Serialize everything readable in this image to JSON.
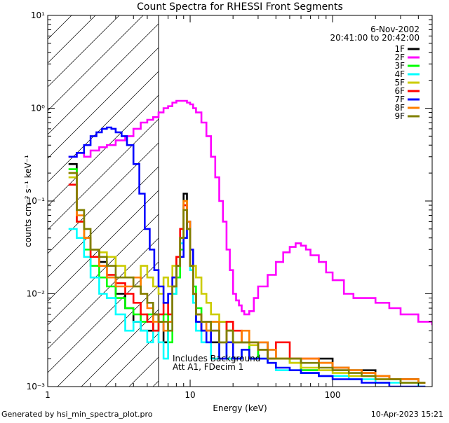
{
  "chart_data": {
    "type": "line",
    "title": "Count Spectra for RHESSI Front Segments",
    "xlabel": "Energy (keV)",
    "ylabel": "counts cm⁻² s⁻¹ keV⁻¹",
    "x_scale": "log",
    "y_scale": "log",
    "xlim": [
      1,
      500
    ],
    "ylim": [
      0.001,
      10
    ],
    "x_ticks": [
      {
        "value": 1,
        "label": "1"
      },
      {
        "value": 10,
        "label": "10"
      },
      {
        "value": 100,
        "label": "100"
      }
    ],
    "y_ticks": [
      {
        "value": 0.001,
        "label": "10⁻³"
      },
      {
        "value": 0.01,
        "label": "10⁻²"
      },
      {
        "value": 0.1,
        "label": "10⁻¹"
      },
      {
        "value": 1,
        "label": "10⁰"
      },
      {
        "value": 10,
        "label": "10¹"
      }
    ],
    "date_label": "6-Nov-2002",
    "time_label": "20:41:00 to 20:42:00",
    "hatched_region_keV": [
      1,
      6
    ],
    "annotations": [
      "Includes Background",
      "Att A1, FDecim 1"
    ],
    "footer_left": "Generated by hsi_min_spectra_plot.pro",
    "footer_right": "10-Apr-2023 15:21",
    "series": [
      {
        "name": "1F",
        "color": "#000000",
        "x": [
          1.4,
          1.6,
          1.8,
          2.0,
          2.3,
          2.6,
          3.0,
          3.5,
          4.0,
          4.5,
          5.0,
          5.5,
          6.0,
          6.5,
          7.0,
          7.5,
          8.0,
          8.5,
          9.0,
          9.5,
          10,
          10.5,
          11,
          12,
          13,
          14,
          16,
          18,
          20,
          23,
          26,
          30,
          35,
          40,
          50,
          60,
          80,
          100,
          130,
          160,
          200,
          250,
          300,
          400
        ],
        "y": [
          0.25,
          0.08,
          0.04,
          0.03,
          0.022,
          0.015,
          0.01,
          0.007,
          0.005,
          0.004,
          0.004,
          0.006,
          0.005,
          0.003,
          0.005,
          0.012,
          0.02,
          0.04,
          0.12,
          0.06,
          0.02,
          0.01,
          0.005,
          0.004,
          0.004,
          0.003,
          0.005,
          0.004,
          0.003,
          0.003,
          0.002,
          0.003,
          0.0025,
          0.002,
          0.002,
          0.0015,
          0.002,
          0.0015,
          0.0015,
          0.0015,
          0.0013,
          0.0012,
          0.0012,
          0.0011
        ]
      },
      {
        "name": "2F",
        "color": "#ff00ff",
        "x": [
          1.4,
          1.6,
          1.8,
          2.0,
          2.3,
          2.6,
          3.0,
          3.5,
          4.0,
          4.5,
          5.0,
          5.5,
          6.0,
          6.5,
          7.0,
          7.5,
          8.0,
          8.5,
          9.0,
          9.5,
          10,
          10.5,
          11,
          12,
          13,
          14,
          15,
          16,
          17,
          18,
          19,
          20,
          21,
          22,
          23,
          24,
          26,
          28,
          30,
          35,
          40,
          45,
          50,
          55,
          60,
          65,
          70,
          80,
          90,
          100,
          120,
          140,
          160,
          200,
          250,
          300,
          400,
          500
        ],
        "y": [
          0.3,
          0.33,
          0.3,
          0.35,
          0.38,
          0.4,
          0.45,
          0.5,
          0.6,
          0.7,
          0.75,
          0.8,
          0.9,
          1.0,
          1.05,
          1.15,
          1.2,
          1.2,
          1.2,
          1.15,
          1.1,
          1.0,
          0.9,
          0.7,
          0.5,
          0.3,
          0.18,
          0.1,
          0.06,
          0.03,
          0.018,
          0.01,
          0.0085,
          0.0075,
          0.0065,
          0.006,
          0.0065,
          0.009,
          0.012,
          0.016,
          0.022,
          0.028,
          0.032,
          0.035,
          0.033,
          0.03,
          0.026,
          0.022,
          0.017,
          0.014,
          0.01,
          0.009,
          0.009,
          0.008,
          0.007,
          0.006,
          0.005,
          0.0047
        ]
      },
      {
        "name": "3F",
        "color": "#00ff00",
        "x": [
          1.4,
          1.6,
          1.8,
          2.0,
          2.3,
          2.6,
          3.0,
          3.5,
          4.0,
          4.5,
          5.0,
          5.5,
          6.0,
          6.5,
          7.0,
          7.5,
          8.0,
          8.5,
          9.0,
          9.5,
          10,
          10.5,
          11,
          12,
          13,
          14,
          16,
          18,
          20,
          23,
          26,
          30,
          35,
          40,
          50,
          60,
          80,
          100,
          130,
          160,
          200,
          250,
          300,
          400
        ],
        "y": [
          0.22,
          0.06,
          0.03,
          0.02,
          0.015,
          0.012,
          0.009,
          0.007,
          0.006,
          0.005,
          0.006,
          0.004,
          0.005,
          0.006,
          0.003,
          0.01,
          0.015,
          0.03,
          0.1,
          0.05,
          0.02,
          0.012,
          0.007,
          0.005,
          0.004,
          0.005,
          0.003,
          0.004,
          0.003,
          0.003,
          0.002,
          0.0025,
          0.002,
          0.002,
          0.0018,
          0.0015,
          0.0018,
          0.0016,
          0.0015,
          0.0014,
          0.0013,
          0.0012,
          0.0012,
          0.0011
        ]
      },
      {
        "name": "4F",
        "color": "#00ffff",
        "x": [
          1.4,
          1.6,
          1.8,
          2.0,
          2.3,
          2.6,
          3.0,
          3.5,
          4.0,
          4.5,
          5.0,
          5.5,
          6.0,
          6.5,
          7.0,
          7.5,
          8.0,
          8.5,
          9.0,
          9.5,
          10,
          10.5,
          11,
          12,
          13,
          14,
          16,
          18,
          20,
          23,
          26,
          30,
          35,
          40,
          50,
          60,
          80,
          100,
          130,
          160,
          200,
          250,
          300,
          400
        ],
        "y": [
          0.05,
          0.04,
          0.025,
          0.015,
          0.01,
          0.009,
          0.006,
          0.004,
          0.005,
          0.004,
          0.003,
          0.004,
          0.003,
          0.002,
          0.004,
          0.01,
          0.02,
          0.035,
          0.09,
          0.05,
          0.018,
          0.008,
          0.004,
          0.003,
          0.003,
          0.002,
          0.003,
          0.002,
          0.002,
          0.0025,
          0.002,
          0.002,
          0.0018,
          0.0015,
          0.0015,
          0.0014,
          0.0013,
          0.0013,
          0.0012,
          0.0012,
          0.0011,
          0.0011,
          0.0011,
          0.001
        ]
      },
      {
        "name": "5F",
        "color": "#cccc00",
        "x": [
          1.4,
          1.6,
          1.8,
          2.0,
          2.3,
          2.6,
          3.0,
          3.5,
          4.0,
          4.5,
          5.0,
          5.5,
          6.0,
          6.5,
          7.0,
          7.5,
          8.0,
          8.5,
          9.0,
          9.5,
          10,
          10.5,
          11,
          12,
          13,
          14,
          16,
          18,
          20,
          23,
          26,
          30,
          35,
          40,
          50,
          60,
          80,
          100,
          130,
          160,
          200,
          250,
          300,
          400
        ],
        "y": [
          0.18,
          0.06,
          0.04,
          0.03,
          0.028,
          0.025,
          0.02,
          0.015,
          0.012,
          0.02,
          0.015,
          0.012,
          0.01,
          0.015,
          0.012,
          0.02,
          0.025,
          0.04,
          0.1,
          0.05,
          0.03,
          0.02,
          0.015,
          0.01,
          0.008,
          0.006,
          0.005,
          0.004,
          0.003,
          0.003,
          0.0028,
          0.0025,
          0.002,
          0.002,
          0.0018,
          0.0016,
          0.0015,
          0.0014,
          0.0013,
          0.0013,
          0.0012,
          0.0012,
          0.0011,
          0.0011
        ]
      },
      {
        "name": "6F",
        "color": "#ff0000",
        "x": [
          1.4,
          1.6,
          1.8,
          2.0,
          2.3,
          2.6,
          3.0,
          3.5,
          4.0,
          4.5,
          5.0,
          5.5,
          6.0,
          6.5,
          7.0,
          7.5,
          8.0,
          8.5,
          9.0,
          9.5,
          10,
          10.5,
          11,
          12,
          13,
          14,
          16,
          18,
          20,
          23,
          26,
          30,
          35,
          40,
          50,
          60,
          80,
          100,
          130,
          160,
          200,
          250,
          300,
          400
        ],
        "y": [
          0.15,
          0.06,
          0.04,
          0.025,
          0.02,
          0.016,
          0.013,
          0.01,
          0.008,
          0.006,
          0.005,
          0.004,
          0.006,
          0.008,
          0.006,
          0.015,
          0.025,
          0.05,
          0.09,
          0.05,
          0.02,
          0.01,
          0.006,
          0.004,
          0.005,
          0.004,
          0.003,
          0.005,
          0.004,
          0.003,
          0.003,
          0.0025,
          0.002,
          0.003,
          0.002,
          0.002,
          0.0018,
          0.0016,
          0.0015,
          0.0014,
          0.0013,
          0.0012,
          0.0012,
          0.0011
        ]
      },
      {
        "name": "7F",
        "color": "#0000ff",
        "x": [
          1.4,
          1.6,
          1.8,
          2.0,
          2.2,
          2.4,
          2.6,
          2.8,
          3.0,
          3.3,
          3.6,
          4.0,
          4.4,
          4.8,
          5.2,
          5.6,
          6.0,
          6.5,
          7.0,
          7.5,
          8.0,
          8.5,
          9.0,
          9.5,
          10,
          10.5,
          11,
          12,
          13,
          14,
          16,
          18,
          20,
          23,
          26,
          30,
          35,
          40,
          50,
          60,
          80,
          100,
          130,
          160,
          200,
          250,
          300,
          400
        ],
        "y": [
          0.3,
          0.33,
          0.4,
          0.5,
          0.55,
          0.6,
          0.62,
          0.6,
          0.55,
          0.5,
          0.4,
          0.25,
          0.12,
          0.05,
          0.03,
          0.018,
          0.012,
          0.008,
          0.01,
          0.015,
          0.02,
          0.025,
          0.04,
          0.06,
          0.03,
          0.01,
          0.005,
          0.004,
          0.003,
          0.004,
          0.002,
          0.003,
          0.002,
          0.0025,
          0.002,
          0.002,
          0.0018,
          0.0016,
          0.0015,
          0.0014,
          0.0013,
          0.0012,
          0.0012,
          0.0011,
          0.0011,
          0.001,
          0.001,
          0.001
        ]
      },
      {
        "name": "8F",
        "color": "#ff7f00",
        "x": [
          1.4,
          1.6,
          1.8,
          2.0,
          2.3,
          2.6,
          3.0,
          3.5,
          4.0,
          4.5,
          5.0,
          5.5,
          6.0,
          6.5,
          7.0,
          7.5,
          8.0,
          8.5,
          9.0,
          9.5,
          10,
          10.5,
          11,
          12,
          13,
          14,
          16,
          18,
          20,
          23,
          26,
          30,
          35,
          40,
          50,
          60,
          80,
          100,
          130,
          160,
          200,
          250,
          300,
          400
        ],
        "y": [
          0.2,
          0.07,
          0.04,
          0.03,
          0.02,
          0.015,
          0.012,
          0.012,
          0.015,
          0.01,
          0.007,
          0.005,
          0.005,
          0.004,
          0.005,
          0.012,
          0.02,
          0.04,
          0.1,
          0.06,
          0.02,
          0.01,
          0.006,
          0.005,
          0.004,
          0.005,
          0.003,
          0.004,
          0.003,
          0.004,
          0.003,
          0.003,
          0.0025,
          0.002,
          0.002,
          0.002,
          0.0018,
          0.0016,
          0.0015,
          0.0014,
          0.0013,
          0.0012,
          0.0012,
          0.0011
        ]
      },
      {
        "name": "9F",
        "color": "#808000",
        "x": [
          1.4,
          1.6,
          1.8,
          2.0,
          2.3,
          2.6,
          3.0,
          3.5,
          4.0,
          4.5,
          5.0,
          5.5,
          6.0,
          6.5,
          7.0,
          7.5,
          8.0,
          8.5,
          9.0,
          9.5,
          10,
          10.5,
          11,
          12,
          13,
          14,
          16,
          18,
          20,
          23,
          26,
          30,
          35,
          40,
          50,
          60,
          80,
          100,
          130,
          160,
          200,
          250,
          300,
          400
        ],
        "y": [
          0.2,
          0.08,
          0.05,
          0.03,
          0.025,
          0.02,
          0.015,
          0.015,
          0.012,
          0.01,
          0.008,
          0.006,
          0.005,
          0.005,
          0.004,
          0.012,
          0.02,
          0.04,
          0.08,
          0.05,
          0.02,
          0.01,
          0.006,
          0.005,
          0.005,
          0.004,
          0.003,
          0.004,
          0.003,
          0.003,
          0.003,
          0.0025,
          0.002,
          0.002,
          0.002,
          0.0018,
          0.0016,
          0.0015,
          0.0014,
          0.0013,
          0.0012,
          0.0012,
          0.0011,
          0.0011
        ]
      }
    ]
  }
}
